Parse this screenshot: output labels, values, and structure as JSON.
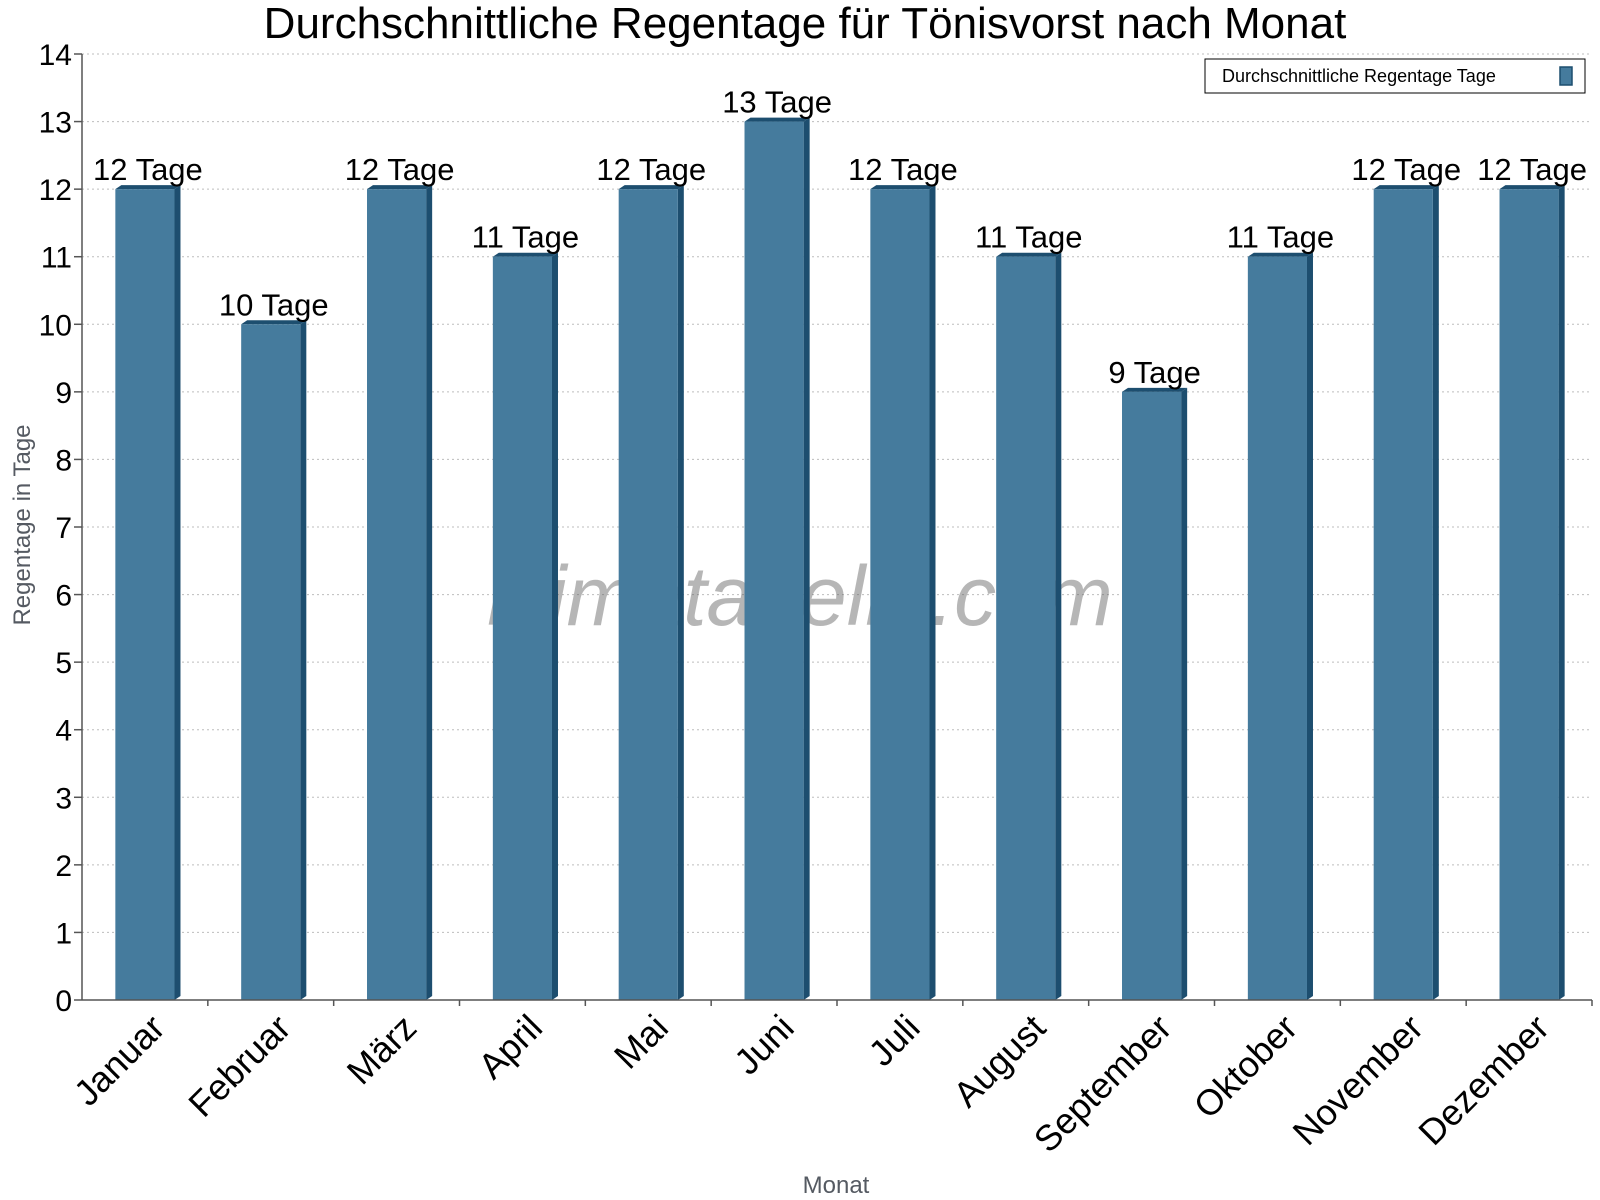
{
  "chart_data": {
    "type": "bar",
    "title": "Durchschnittliche Regentage für Tönisvorst nach Monat",
    "xlabel": "Monat",
    "ylabel": "Regentage in Tage",
    "ylim": [
      0,
      14
    ],
    "yticks": [
      0,
      1,
      2,
      3,
      4,
      5,
      6,
      7,
      8,
      9,
      10,
      11,
      12,
      13,
      14
    ],
    "grid": true,
    "legend_position": "top-right",
    "categories": [
      "Januar",
      "Februar",
      "März",
      "April",
      "Mai",
      "Juni",
      "Juli",
      "August",
      "September",
      "Oktober",
      "November",
      "Dezember"
    ],
    "series": [
      {
        "name": "Durchschnittliche Regentage Tage",
        "values": [
          12,
          10,
          12,
          11,
          12,
          13,
          12,
          11,
          9,
          11,
          12,
          12
        ],
        "labels": [
          "12 Tage",
          "10 Tage",
          "12 Tage",
          "11 Tage",
          "12 Tage",
          "13 Tage",
          "12 Tage",
          "11 Tage",
          "9 Tage",
          "11 Tage",
          "12 Tage",
          "12 Tage"
        ],
        "color": "#457b9d",
        "side_color": "#1d4e6f"
      }
    ],
    "watermark": "klimatabelle.com"
  }
}
